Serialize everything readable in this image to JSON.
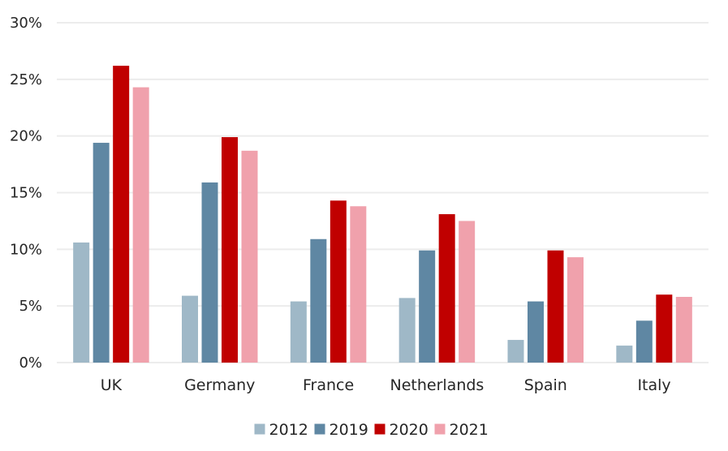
{
  "chart_data": {
    "type": "bar",
    "title": "",
    "xlabel": "",
    "ylabel": "",
    "ylim": [
      0,
      30
    ],
    "y_ticks": [
      0,
      5,
      10,
      15,
      20,
      25,
      30
    ],
    "y_tick_labels": [
      "0%",
      "5%",
      "10%",
      "15%",
      "20%",
      "25%",
      "30%"
    ],
    "grid": true,
    "legend_position": "bottom",
    "categories": [
      "UK",
      "Germany",
      "France",
      "Netherlands",
      "Spain",
      "Italy"
    ],
    "series": [
      {
        "name": "2012",
        "color": "#9fb8c7",
        "values": [
          10.6,
          5.9,
          5.4,
          5.7,
          2.0,
          1.5
        ]
      },
      {
        "name": "2019",
        "color": "#5f87a3",
        "values": [
          19.4,
          15.9,
          10.9,
          9.9,
          5.4,
          3.7
        ]
      },
      {
        "name": "2020",
        "color": "#c00000",
        "values": [
          26.2,
          19.9,
          14.3,
          13.1,
          9.9,
          6.0
        ]
      },
      {
        "name": "2021",
        "color": "#f0a1ac",
        "values": [
          24.3,
          18.7,
          13.8,
          12.5,
          9.3,
          5.8
        ]
      }
    ]
  }
}
